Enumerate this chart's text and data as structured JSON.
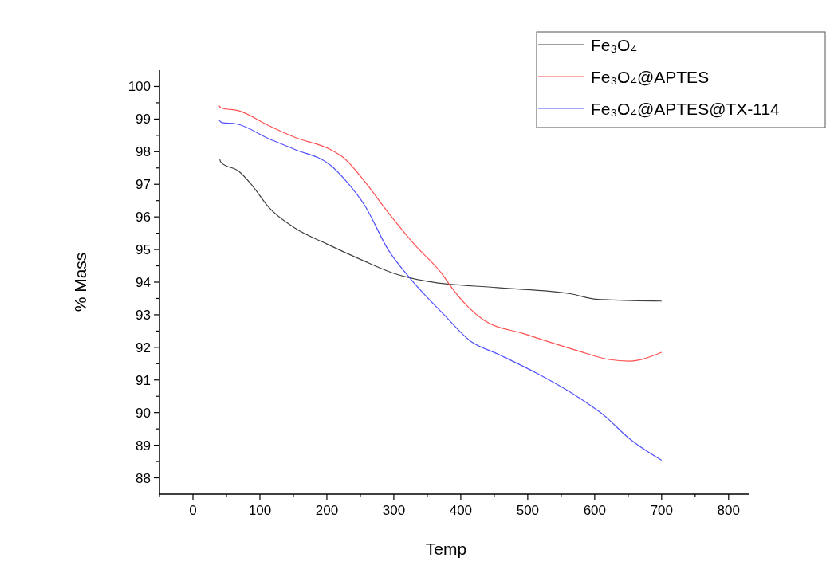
{
  "chart_data": {
    "type": "line",
    "xlabel": "Temp",
    "ylabel": "% Mass",
    "xlim": [
      -50,
      830
    ],
    "ylim": [
      87.5,
      100.5
    ],
    "xticks": [
      {
        "value": -50,
        "label": null
      },
      0,
      {
        "value": 50,
        "label": null
      },
      100,
      {
        "value": 150,
        "label": null
      },
      200,
      {
        "value": 250,
        "label": null
      },
      300,
      {
        "value": 350,
        "label": null
      },
      400,
      {
        "value": 450,
        "label": null
      },
      500,
      {
        "value": 550,
        "label": null
      },
      600,
      {
        "value": 650,
        "label": null
      },
      700,
      {
        "value": 750,
        "label": null
      },
      800
    ],
    "yticks": [
      88,
      {
        "value": 88.5,
        "label": null
      },
      89,
      {
        "value": 89.5,
        "label": null
      },
      90,
      {
        "value": 90.5,
        "label": null
      },
      91,
      {
        "value": 91.5,
        "label": null
      },
      92,
      {
        "value": 92.5,
        "label": null
      },
      93,
      {
        "value": 93.5,
        "label": null
      },
      94,
      {
        "value": 94.5,
        "label": null
      },
      95,
      {
        "value": 95.5,
        "label": null
      },
      96,
      {
        "value": 96.5,
        "label": null
      },
      97,
      {
        "value": 97.5,
        "label": null
      },
      98,
      {
        "value": 98.5,
        "label": null
      },
      99,
      {
        "value": 99.5,
        "label": null
      },
      100
    ],
    "grid": false,
    "legend": "top right",
    "line_style": "solid",
    "marker": "none",
    "series": [
      {
        "name": "Fe₃O₄",
        "color": "#404040",
        "x": [
          40,
          42,
          69,
          89,
          113,
          152,
          200,
          252,
          300,
          351,
          455,
          565,
          601,
          700
        ],
        "values": [
          97.76,
          97.67,
          97.39,
          96.95,
          96.3,
          95.66,
          95.17,
          94.68,
          94.27,
          94.02,
          93.83,
          93.64,
          93.48,
          93.42
        ]
      },
      {
        "name": "Fe₃O₄@APTES",
        "color": "#ff5050",
        "x": [
          39,
          42,
          69,
          113,
          152,
          205,
          224,
          256,
          292,
          331,
          375,
          383,
          411,
          435,
          494,
          574,
          621,
          652,
          700
        ],
        "values": [
          99.41,
          99.34,
          99.25,
          98.8,
          98.44,
          98.07,
          97.83,
          97.1,
          96.12,
          95.15,
          94.17,
          93.93,
          93.24,
          92.83,
          92.42,
          91.9,
          91.63,
          91.58,
          91.85
        ]
      },
      {
        "name": "Fe₃O₄@APTES@TX-114",
        "color": "#5050ff",
        "x": [
          39,
          43,
          65,
          113,
          152,
          205,
          232,
          256,
          292,
          325,
          375,
          414,
          455,
          514,
          574,
          613,
          652,
          700
        ],
        "values": [
          98.98,
          98.89,
          98.85,
          98.4,
          98.07,
          97.59,
          97.02,
          96.37,
          94.98,
          94.1,
          93.0,
          92.2,
          91.8,
          91.2,
          90.49,
          89.93,
          89.2,
          88.54
        ]
      }
    ]
  }
}
